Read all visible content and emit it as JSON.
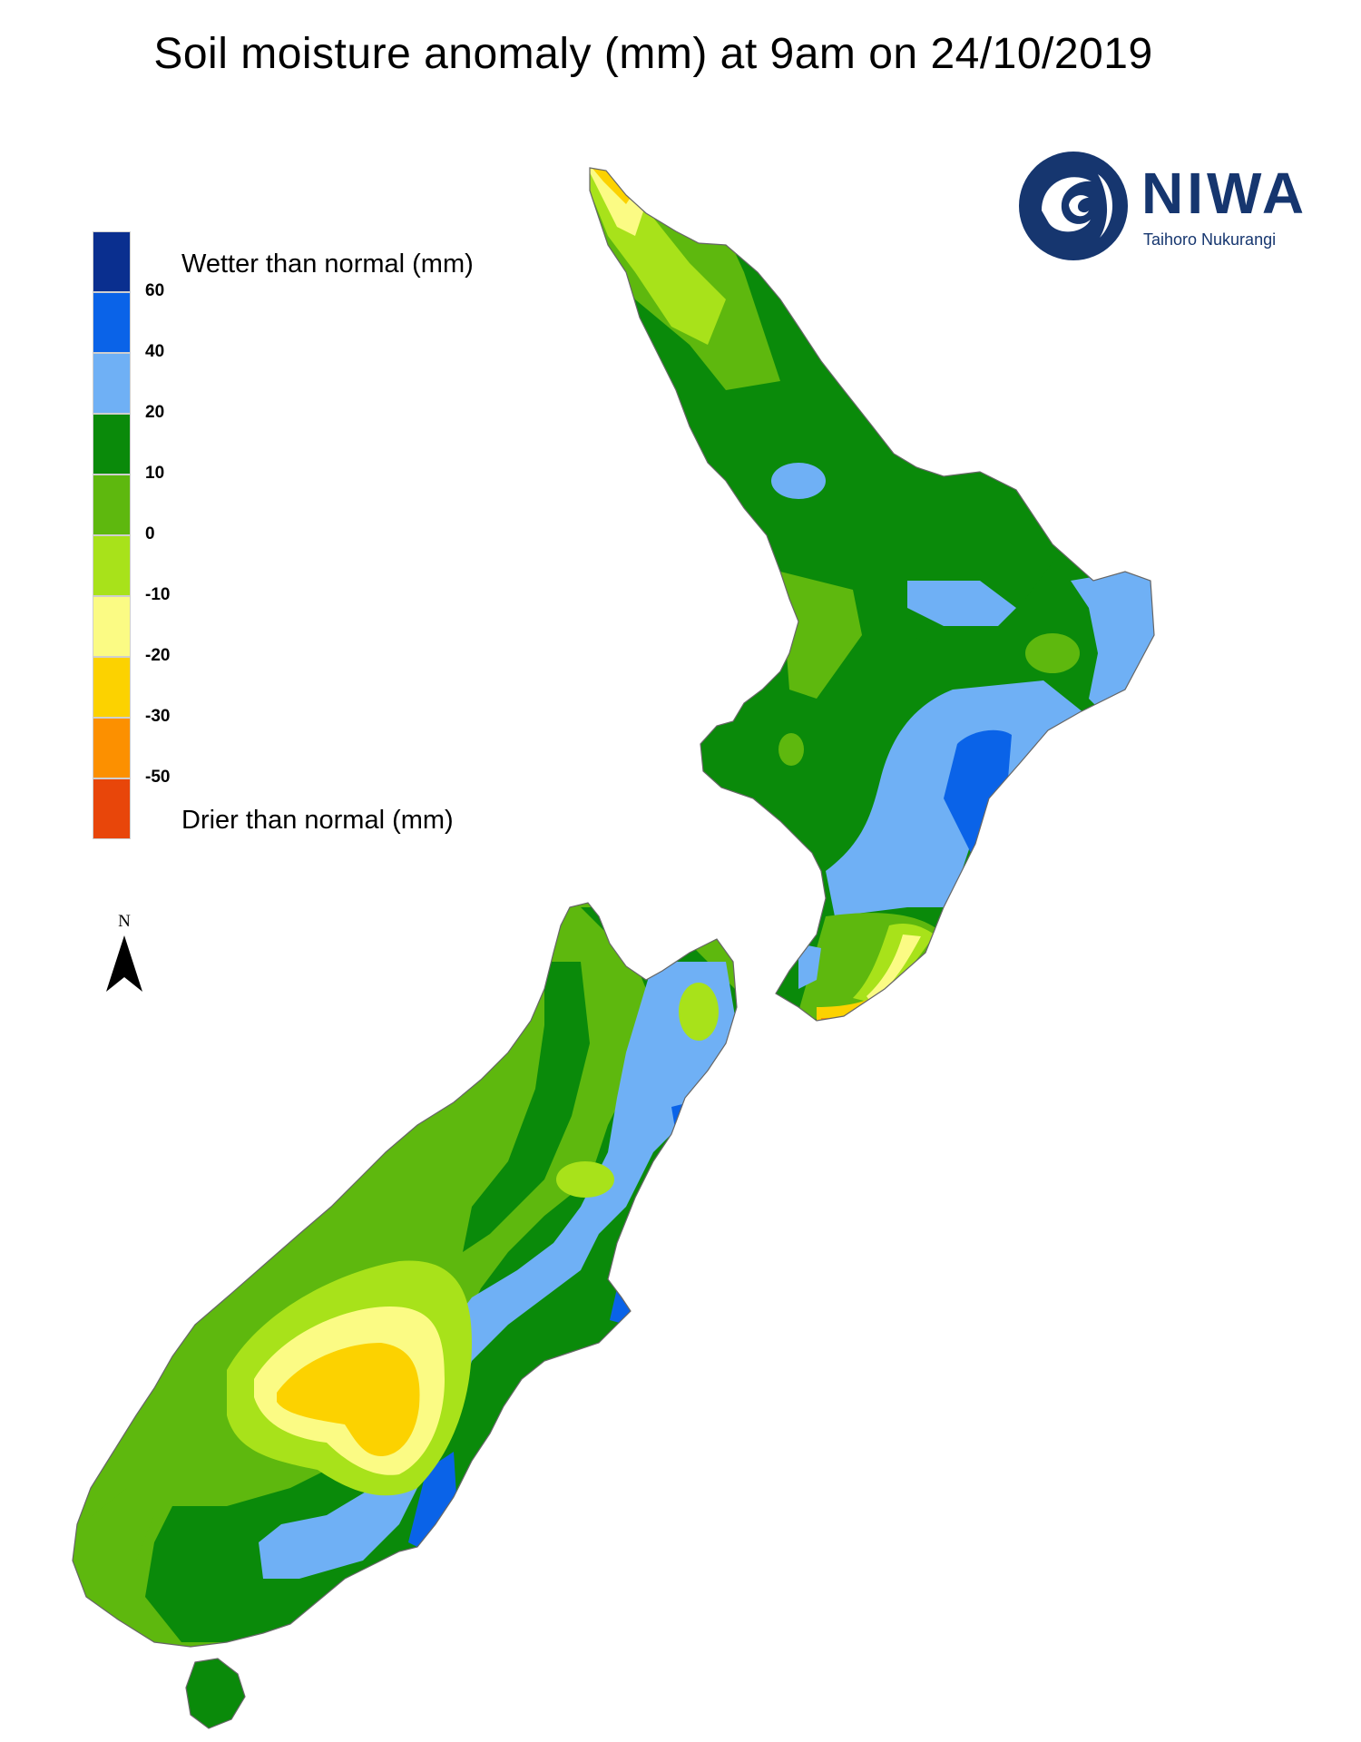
{
  "title": "Soil moisture anomaly (mm) at 9am on 24/10/2019",
  "legend": {
    "top_label": "Wetter than normal (mm)",
    "bottom_label": "Drier than normal (mm)",
    "colors": [
      "#0a2f8f",
      "#0a63e8",
      "#6fb0f5",
      "#0a8a0a",
      "#5eb80e",
      "#a8e21a",
      "#fbfb84",
      "#fcd200",
      "#fc9000",
      "#e8460a"
    ],
    "ticks": [
      "60",
      "40",
      "20",
      "10",
      "0",
      "-10",
      "-20",
      "-30",
      "-50"
    ]
  },
  "north_arrow": {
    "label": "N"
  },
  "logo": {
    "name": "NIWA",
    "subtitle": "Taihoro Nukurangi"
  }
}
